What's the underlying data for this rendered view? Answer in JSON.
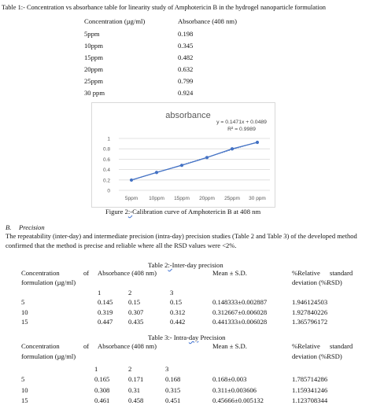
{
  "table1": {
    "caption": "Table 1:- Concentration vs absorbance table for linearity study of Amphotericin B in the hydrogel nanoparticle formulation",
    "headers": [
      "Concentration (µg/ml)",
      "Absorbance (408 nm)"
    ],
    "rows": [
      [
        "5ppm",
        "0.198"
      ],
      [
        "10ppm",
        "0.345"
      ],
      [
        "15ppm",
        "0.482"
      ],
      [
        "20ppm",
        "0.632"
      ],
      [
        "25ppm",
        "0.799"
      ],
      [
        "30 ppm",
        "0.924"
      ]
    ]
  },
  "chart_data": {
    "type": "scatter",
    "title": "absorbance",
    "categories": [
      "5ppm",
      "10ppm",
      "15ppm",
      "20ppm",
      "25ppm",
      "30 ppm"
    ],
    "values": [
      0.198,
      0.345,
      0.482,
      0.632,
      0.799,
      0.924
    ],
    "trendline": {
      "slope": 0.1471,
      "intercept": 0.0489,
      "equation": "y = 0.1471x + 0.0489",
      "r2": "R² = 0.9989"
    },
    "ylim": [
      0,
      1
    ],
    "yticks": [
      "0",
      "0.2",
      "0.4",
      "0.6",
      "0.8",
      "1"
    ],
    "grid": true,
    "legend": "none",
    "colors": {
      "series": "#4472c4",
      "grid": "#d9d9d9",
      "axis_text": "#595959"
    }
  },
  "figure2": {
    "caption_prefix": "Figure 2",
    "caption_mark": ":-",
    "caption_rest": "Calibration curve of Amphotericin B at 408 nm"
  },
  "precision": {
    "heading_letter": "B.",
    "heading": "Precision",
    "para_line1": "The repeatability (inter-day) and intermediate precision (intra-day) precision studies (Table 2 and Table 3) of the developed method",
    "para_line2": "confirmed that the method is precise and reliable where all the RSD values were <2%."
  },
  "table2": {
    "caption_prefix": "Table 2",
    "caption_mark": ":-",
    "caption_rest": "Inter-day precision",
    "h_conc1": "Concentration",
    "h_of": "of",
    "h_abs": "Absorbance (408 nm)",
    "h_mean": "Mean ± S.D.",
    "h_rsd1": "%Relative",
    "h_rsd_std": "standard",
    "h_conc2": "formulation (µg/ml)",
    "h_rsd2": "deviation (%RSD)",
    "sub": [
      "1",
      "2",
      "3"
    ],
    "rows": [
      {
        "conc": "5",
        "a1": "0.145",
        "a2": "0.15",
        "a3": "0.15",
        "mean": "0.148333±0.002887",
        "rsd": "1.946124503"
      },
      {
        "conc": "10",
        "a1": "0.319",
        "a2": "0.307",
        "a3": "0.312",
        "mean": "0.312667±0.006028",
        "rsd": "1.927840226"
      },
      {
        "conc": "15",
        "a1": "0.447",
        "a2": "0.435",
        "a3": "0.442",
        "mean": "0.441333±0.006028",
        "rsd": "1.365796172"
      }
    ]
  },
  "table3": {
    "caption_prefix": "Table 3:- Intra-",
    "caption_mark": "day",
    "caption_rest": " Precision",
    "h_conc1": "Concentration",
    "h_of": "of",
    "h_abs": "Absorbance (408 nm)",
    "h_mean": "Mean ± S.D.",
    "h_rsd1": "%Relative",
    "h_rsd_std": "standard",
    "h_conc2": "formulation (µg/ml)",
    "h_rsd2": "deviation (%RSD)",
    "sub": [
      "1",
      "2",
      "3"
    ],
    "rows": [
      {
        "conc": "5",
        "a1": "0.165",
        "a2": "0.171",
        "a3": "0.168",
        "mean": "0.168±0.003",
        "rsd": "1.785714286"
      },
      {
        "conc": "10",
        "a1": "0.308",
        "a2": "0.31",
        "a3": "0.315",
        "mean": "0.311±0.003606",
        "rsd": "1.159341246"
      },
      {
        "conc": "15",
        "a1": "0.461",
        "a2": "0.458",
        "a3": "0.451",
        "mean": "0.45666±0.005132",
        "rsd": "1.123708344"
      }
    ]
  }
}
